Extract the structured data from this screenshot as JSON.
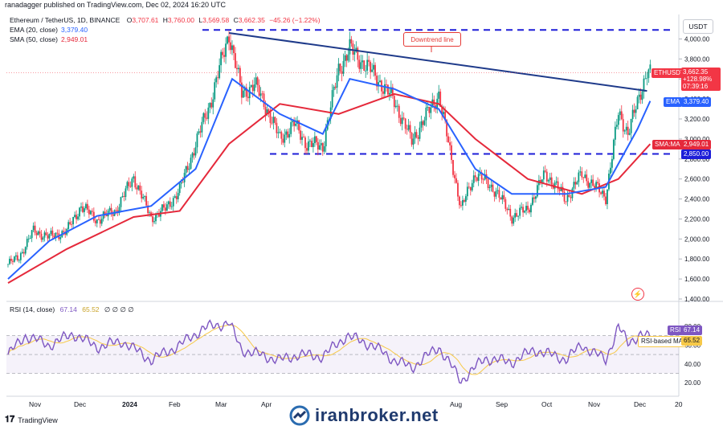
{
  "header": {
    "publisher": "ranadagger published on TradingView.com, Dec 02, 2024 16:20 UTC",
    "symbol": "Ethereum / TetherUS, 1D, BINANCE",
    "ohlc": {
      "o_label": "O",
      "o": "3,707.61",
      "h_label": "H",
      "h": "3,760.00",
      "l_label": "L",
      "l": "3,569.58",
      "c_label": "C",
      "c": "3,662.35",
      "chg": "−45.26 (−1.22%)"
    },
    "ema_label": "EMA (20, close)",
    "ema_value": "3,379.40",
    "sma_label": "SMA (50, close)",
    "sma_value": "2,949.01",
    "currency": "USDT"
  },
  "colors": {
    "up": "#089981",
    "down": "#f23645",
    "ema": "#2962ff",
    "sma": "#e5293b",
    "trend": "#1e3a8a",
    "support": "#1e1ed8",
    "rsi": "#7e57c2",
    "rsi_ma": "#f7c948"
  },
  "price_axis": {
    "ticks": [
      "4,000.00",
      "3,800.00",
      "3,600.00",
      "3,400.00",
      "3,200.00",
      "3,000.00",
      "2,800.00",
      "2,600.00",
      "2,400.00",
      "2,200.00",
      "2,000.00",
      "1,800.00",
      "1,600.00",
      "1,400.00"
    ],
    "tags": {
      "ticker": "ETHUSDT",
      "price": "3,662.35",
      "change": "+128.98%",
      "timer": "07:39:16",
      "ema_tag": "EMA",
      "ema_val": "3,379.40",
      "sma_tag": "SMA:MA",
      "sma_val": "2,949.01",
      "support_val": "2,850.00"
    }
  },
  "rsi": {
    "label": "RSI (14, close)",
    "value": "67.14",
    "ma_value": "65.52",
    "placeholders": "∅ ∅ ∅ ∅",
    "tag": "RSI",
    "tag_val": "67.14",
    "ma_tag": "RSI-based MA",
    "ma_tag_val": "65.52",
    "ticks": [
      "80.00",
      "60.00",
      "40.00",
      "20.00"
    ]
  },
  "time_axis": [
    "Nov",
    "Dec",
    "2024",
    "Feb",
    "Mar",
    "Apr",
    "Aug",
    "Sep",
    "Oct",
    "Nov",
    "Dec",
    "20"
  ],
  "annotation": "Downtrend line",
  "footer": {
    "logo": "TradingView",
    "brand": "iranbroker.net"
  },
  "chart_data": {
    "type": "candlestick",
    "title": "Ethereum / TetherUS, 1D, BINANCE",
    "ylim": [
      1400,
      4100
    ],
    "x_range": [
      "2023-10-24",
      "2024-12-20"
    ],
    "close_path": [
      [
        "2023-10-25",
        1750
      ],
      [
        "2023-11-01",
        1820
      ],
      [
        "2023-11-10",
        2080
      ],
      [
        "2023-11-20",
        2020
      ],
      [
        "2023-12-01",
        2080
      ],
      [
        "2023-12-10",
        2330
      ],
      [
        "2023-12-20",
        2190
      ],
      [
        "2024-01-01",
        2290
      ],
      [
        "2024-01-12",
        2620
      ],
      [
        "2024-01-23",
        2210
      ],
      [
        "2024-02-01",
        2300
      ],
      [
        "2024-02-10",
        2490
      ],
      [
        "2024-02-20",
        2950
      ],
      [
        "2024-03-01",
        3400
      ],
      [
        "2024-03-12",
        4060
      ],
      [
        "2024-03-20",
        3450
      ],
      [
        "2024-03-28",
        3550
      ],
      [
        "2024-04-05",
        3300
      ],
      [
        "2024-04-13",
        3000
      ],
      [
        "2024-04-22",
        3150
      ],
      [
        "2024-04-30",
        2950
      ],
      [
        "2024-05-10",
        2930
      ],
      [
        "2024-05-20",
        3700
      ],
      [
        "2024-05-27",
        3900
      ],
      [
        "2024-06-10",
        3670
      ],
      [
        "2024-06-24",
        3380
      ],
      [
        "2024-07-05",
        2980
      ],
      [
        "2024-07-22",
        3450
      ],
      [
        "2024-08-05",
        2300
      ],
      [
        "2024-08-14",
        2660
      ],
      [
        "2024-08-27",
        2480
      ],
      [
        "2024-09-06",
        2220
      ],
      [
        "2024-09-16",
        2300
      ],
      [
        "2024-09-27",
        2660
      ],
      [
        "2024-10-10",
        2400
      ],
      [
        "2024-10-20",
        2650
      ],
      [
        "2024-11-04",
        2420
      ],
      [
        "2024-11-12",
        3250
      ],
      [
        "2024-11-18",
        3070
      ],
      [
        "2024-11-24",
        3350
      ],
      [
        "2024-11-30",
        3700
      ],
      [
        "2024-12-02",
        3662
      ]
    ],
    "ema20_path": [
      [
        "2023-10-25",
        1600
      ],
      [
        "2023-11-20",
        1980
      ],
      [
        "2023-12-20",
        2230
      ],
      [
        "2024-01-23",
        2330
      ],
      [
        "2024-02-20",
        2700
      ],
      [
        "2024-03-14",
        3600
      ],
      [
        "2024-04-13",
        3250
      ],
      [
        "2024-05-10",
        3050
      ],
      [
        "2024-05-27",
        3600
      ],
      [
        "2024-06-24",
        3500
      ],
      [
        "2024-07-22",
        3300
      ],
      [
        "2024-08-14",
        2700
      ],
      [
        "2024-09-06",
        2450
      ],
      [
        "2024-10-10",
        2450
      ],
      [
        "2024-11-04",
        2520
      ],
      [
        "2024-11-24",
        3100
      ],
      [
        "2024-12-02",
        3379
      ]
    ],
    "sma50_path": [
      [
        "2023-10-25",
        1560
      ],
      [
        "2023-12-01",
        1900
      ],
      [
        "2024-01-12",
        2220
      ],
      [
        "2024-02-10",
        2280
      ],
      [
        "2024-03-12",
        2950
      ],
      [
        "2024-04-13",
        3350
      ],
      [
        "2024-05-20",
        3250
      ],
      [
        "2024-06-24",
        3450
      ],
      [
        "2024-07-22",
        3350
      ],
      [
        "2024-08-14",
        3000
      ],
      [
        "2024-09-16",
        2600
      ],
      [
        "2024-10-20",
        2450
      ],
      [
        "2024-11-12",
        2600
      ],
      [
        "2024-12-02",
        2949
      ]
    ],
    "downtrend_line": {
      "from": [
        "2024-03-12",
        4060
      ],
      "to": [
        "2024-11-30",
        3480
      ]
    },
    "resistance_line": 4090,
    "support_line": 2850,
    "rsi_path": [
      [
        "2023-10-25",
        50
      ],
      [
        "2023-11-05",
        70
      ],
      [
        "2023-11-20",
        60
      ],
      [
        "2023-12-05",
        72
      ],
      [
        "2023-12-20",
        58
      ],
      [
        "2024-01-05",
        64
      ],
      [
        "2024-01-23",
        44
      ],
      [
        "2024-02-10",
        60
      ],
      [
        "2024-02-25",
        78
      ],
      [
        "2024-03-12",
        84
      ],
      [
        "2024-03-20",
        55
      ],
      [
        "2024-04-13",
        44
      ],
      [
        "2024-04-25",
        50
      ],
      [
        "2024-05-10",
        48
      ],
      [
        "2024-05-25",
        70
      ],
      [
        "2024-06-10",
        60
      ],
      [
        "2024-06-24",
        44
      ],
      [
        "2024-07-05",
        36
      ],
      [
        "2024-07-22",
        58
      ],
      [
        "2024-08-05",
        22
      ],
      [
        "2024-08-20",
        46
      ],
      [
        "2024-09-06",
        42
      ],
      [
        "2024-09-20",
        55
      ],
      [
        "2024-10-10",
        45
      ],
      [
        "2024-10-20",
        60
      ],
      [
        "2024-11-04",
        44
      ],
      [
        "2024-11-12",
        80
      ],
      [
        "2024-11-18",
        62
      ],
      [
        "2024-11-26",
        72
      ],
      [
        "2024-12-02",
        67
      ]
    ],
    "rsi_ylim": [
      15,
      92
    ]
  }
}
